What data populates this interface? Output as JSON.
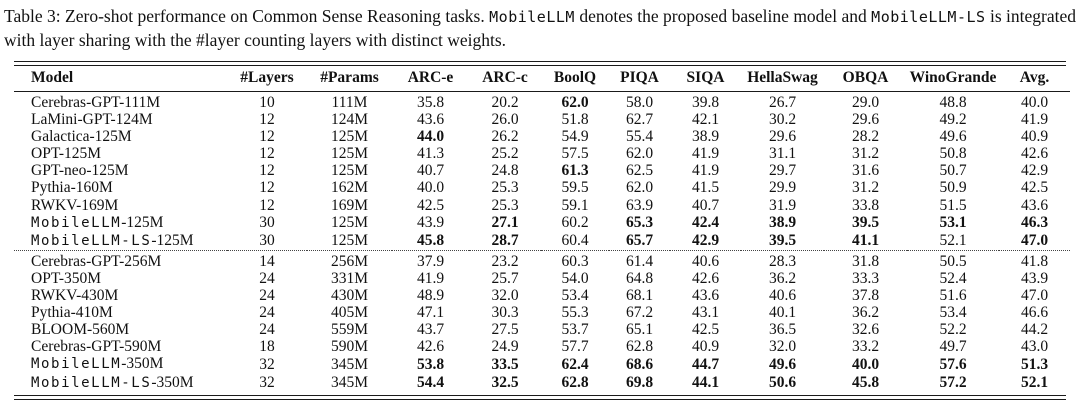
{
  "caption": {
    "segments": [
      {
        "text": "Table 3: Zero-shot performance on Common Sense Reasoning tasks. ",
        "mono": false
      },
      {
        "text": "MobileLLM",
        "mono": true
      },
      {
        "text": " denotes the proposed baseline model and ",
        "mono": false
      },
      {
        "text": "MobileLLM-LS",
        "mono": true
      },
      {
        "text": " is integrated with layer sharing with the #layer counting layers with distinct weights.",
        "mono": false
      }
    ]
  },
  "chart_data": {
    "type": "table",
    "title": "Zero-shot performance on Common Sense Reasoning tasks",
    "columns": [
      "Model",
      "#Layers",
      "#Params",
      "ARC-e",
      "ARC-c",
      "BoolQ",
      "PIQA",
      "SIQA",
      "HellaSwag",
      "OBQA",
      "WinoGrande",
      "Avg."
    ],
    "groups": [
      {
        "rows": [
          {
            "model_mono": "",
            "model_text": "Cerebras-GPT-111M",
            "layers": "10",
            "params": "111M",
            "scores": [
              "35.8",
              "20.2",
              "62.0",
              "58.0",
              "39.8",
              "26.7",
              "29.0",
              "48.8",
              "40.0"
            ],
            "bold": [
              0,
              0,
              1,
              0,
              0,
              0,
              0,
              0,
              0
            ]
          },
          {
            "model_mono": "",
            "model_text": "LaMini-GPT-124M",
            "layers": "12",
            "params": "124M",
            "scores": [
              "43.6",
              "26.0",
              "51.8",
              "62.7",
              "42.1",
              "30.2",
              "29.6",
              "49.2",
              "41.9"
            ],
            "bold": [
              0,
              0,
              0,
              0,
              0,
              0,
              0,
              0,
              0
            ]
          },
          {
            "model_mono": "",
            "model_text": "Galactica-125M",
            "layers": "12",
            "params": "125M",
            "scores": [
              "44.0",
              "26.2",
              "54.9",
              "55.4",
              "38.9",
              "29.6",
              "28.2",
              "49.6",
              "40.9"
            ],
            "bold": [
              1,
              0,
              0,
              0,
              0,
              0,
              0,
              0,
              0
            ]
          },
          {
            "model_mono": "",
            "model_text": "OPT-125M",
            "layers": "12",
            "params": "125M",
            "scores": [
              "41.3",
              "25.2",
              "57.5",
              "62.0",
              "41.9",
              "31.1",
              "31.2",
              "50.8",
              "42.6"
            ],
            "bold": [
              0,
              0,
              0,
              0,
              0,
              0,
              0,
              0,
              0
            ]
          },
          {
            "model_mono": "",
            "model_text": "GPT-neo-125M",
            "layers": "12",
            "params": "125M",
            "scores": [
              "40.7",
              "24.8",
              "61.3",
              "62.5",
              "41.9",
              "29.7",
              "31.6",
              "50.7",
              "42.9"
            ],
            "bold": [
              0,
              0,
              1,
              0,
              0,
              0,
              0,
              0,
              0
            ]
          },
          {
            "model_mono": "",
            "model_text": "Pythia-160M",
            "layers": "12",
            "params": "162M",
            "scores": [
              "40.0",
              "25.3",
              "59.5",
              "62.0",
              "41.5",
              "29.9",
              "31.2",
              "50.9",
              "42.5"
            ],
            "bold": [
              0,
              0,
              0,
              0,
              0,
              0,
              0,
              0,
              0
            ]
          },
          {
            "model_mono": "",
            "model_text": "RWKV-169M",
            "layers": "12",
            "params": "169M",
            "scores": [
              "42.5",
              "25.3",
              "59.1",
              "63.9",
              "40.7",
              "31.9",
              "33.8",
              "51.5",
              "43.6"
            ],
            "bold": [
              0,
              0,
              0,
              0,
              0,
              0,
              0,
              0,
              0
            ]
          },
          {
            "model_mono": "MobileLLM",
            "model_text": "-125M",
            "layers": "30",
            "params": "125M",
            "scores": [
              "43.9",
              "27.1",
              "60.2",
              "65.3",
              "42.4",
              "38.9",
              "39.5",
              "53.1",
              "46.3"
            ],
            "bold": [
              0,
              1,
              0,
              1,
              1,
              1,
              1,
              1,
              1
            ]
          },
          {
            "model_mono": "MobileLLM-LS",
            "model_text": "-125M",
            "layers": "30",
            "params": "125M",
            "scores": [
              "45.8",
              "28.7",
              "60.4",
              "65.7",
              "42.9",
              "39.5",
              "41.1",
              "52.1",
              "47.0"
            ],
            "bold": [
              1,
              1,
              0,
              1,
              1,
              1,
              1,
              0,
              1
            ]
          }
        ]
      },
      {
        "rows": [
          {
            "model_mono": "",
            "model_text": "Cerebras-GPT-256M",
            "layers": "14",
            "params": "256M",
            "scores": [
              "37.9",
              "23.2",
              "60.3",
              "61.4",
              "40.6",
              "28.3",
              "31.8",
              "50.5",
              "41.8"
            ],
            "bold": [
              0,
              0,
              0,
              0,
              0,
              0,
              0,
              0,
              0
            ]
          },
          {
            "model_mono": "",
            "model_text": "OPT-350M",
            "layers": "24",
            "params": "331M",
            "scores": [
              "41.9",
              "25.7",
              "54.0",
              "64.8",
              "42.6",
              "36.2",
              "33.3",
              "52.4",
              "43.9"
            ],
            "bold": [
              0,
              0,
              0,
              0,
              0,
              0,
              0,
              0,
              0
            ]
          },
          {
            "model_mono": "",
            "model_text": "RWKV-430M",
            "layers": "24",
            "params": "430M",
            "scores": [
              "48.9",
              "32.0",
              "53.4",
              "68.1",
              "43.6",
              "40.6",
              "37.8",
              "51.6",
              "47.0"
            ],
            "bold": [
              0,
              0,
              0,
              0,
              0,
              0,
              0,
              0,
              0
            ]
          },
          {
            "model_mono": "",
            "model_text": "Pythia-410M",
            "layers": "24",
            "params": "405M",
            "scores": [
              "47.1",
              "30.3",
              "55.3",
              "67.2",
              "43.1",
              "40.1",
              "36.2",
              "53.4",
              "46.6"
            ],
            "bold": [
              0,
              0,
              0,
              0,
              0,
              0,
              0,
              0,
              0
            ]
          },
          {
            "model_mono": "",
            "model_text": "BLOOM-560M",
            "layers": "24",
            "params": "559M",
            "scores": [
              "43.7",
              "27.5",
              "53.7",
              "65.1",
              "42.5",
              "36.5",
              "32.6",
              "52.2",
              "44.2"
            ],
            "bold": [
              0,
              0,
              0,
              0,
              0,
              0,
              0,
              0,
              0
            ]
          },
          {
            "model_mono": "",
            "model_text": "Cerebras-GPT-590M",
            "layers": "18",
            "params": "590M",
            "scores": [
              "42.6",
              "24.9",
              "57.7",
              "62.8",
              "40.9",
              "32.0",
              "33.2",
              "49.7",
              "43.0"
            ],
            "bold": [
              0,
              0,
              0,
              0,
              0,
              0,
              0,
              0,
              0
            ]
          },
          {
            "model_mono": "MobileLLM",
            "model_text": "-350M",
            "layers": "32",
            "params": "345M",
            "scores": [
              "53.8",
              "33.5",
              "62.4",
              "68.6",
              "44.7",
              "49.6",
              "40.0",
              "57.6",
              "51.3"
            ],
            "bold": [
              1,
              1,
              1,
              1,
              1,
              1,
              1,
              1,
              1
            ]
          },
          {
            "model_mono": "MobileLLM-LS",
            "model_text": "-350M",
            "layers": "32",
            "params": "345M",
            "scores": [
              "54.4",
              "32.5",
              "62.8",
              "69.8",
              "44.1",
              "50.6",
              "45.8",
              "57.2",
              "52.1"
            ],
            "bold": [
              1,
              1,
              1,
              1,
              1,
              1,
              1,
              1,
              1
            ]
          }
        ]
      }
    ]
  }
}
